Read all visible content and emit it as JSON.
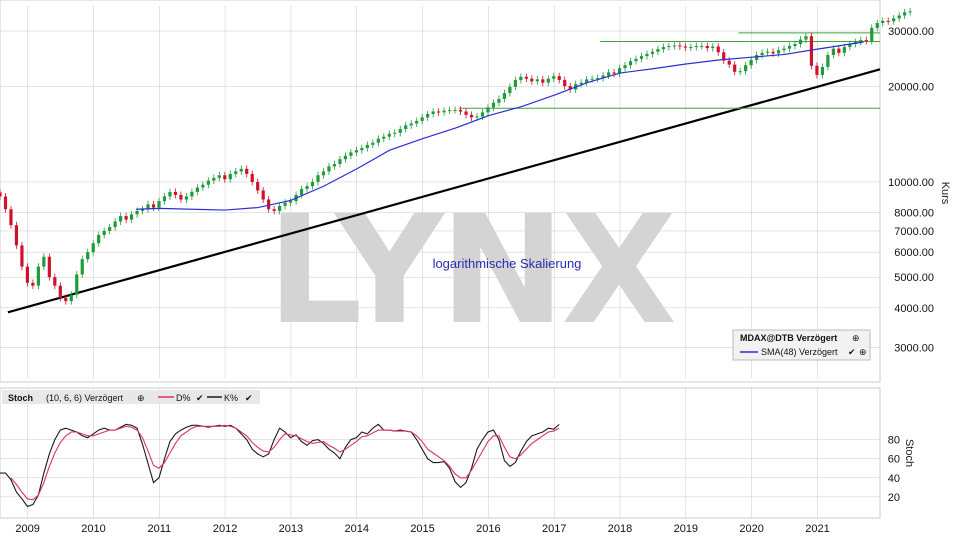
{
  "watermark": "LYNX",
  "annotation": "logarithmische Skalierung",
  "colors": {
    "up": "#1f9b3a",
    "down": "#d0112b",
    "sma": "#2d2dd6",
    "trend": "#000000",
    "support": "#3aa53a",
    "d_line": "#e0306a",
    "k_line": "#1a1a1a",
    "panel_bg": "#e6e6e6",
    "grid": "#c8c8c8"
  },
  "chart_data": [
    {
      "type": "candlestick",
      "scale": "log",
      "ylabel": "Kurs",
      "ylim": [
        2400,
        36000
      ],
      "xlim": [
        2008.58,
        2021.95
      ],
      "x_ticks": [
        "2009",
        "2010",
        "2011",
        "2012",
        "2013",
        "2014",
        "2015",
        "2016",
        "2017",
        "2018",
        "2019",
        "2020",
        "2021"
      ],
      "y_ticks": [
        "30000.00",
        "20000.00",
        "10000.00",
        "8000.00",
        "7000.00",
        "6000.00",
        "5000.00",
        "4000.00",
        "3000.00"
      ],
      "legend": [
        "MDAX@DTB Verzögert",
        "SMA(48) Verzögert"
      ],
      "series": [
        {
          "name": "MDAX@DTB Verzögert",
          "kind": "candles",
          "closes": [
            9000,
            8200,
            7300,
            6300,
            5400,
            4800,
            4700,
            5400,
            5800,
            5000,
            4700,
            4300,
            4200,
            4400,
            5100,
            5700,
            6000,
            6400,
            6800,
            7000,
            7200,
            7500,
            7800,
            7600,
            7900,
            8100,
            8200,
            8500,
            8300,
            8700,
            9000,
            9300,
            9100,
            8800,
            9000,
            9300,
            9600,
            9800,
            10100,
            10300,
            10500,
            10200,
            10600,
            10800,
            11000,
            10600,
            10000,
            9400,
            8800,
            8200,
            8100,
            8400,
            8600,
            8700,
            9100,
            9500,
            9700,
            10000,
            10500,
            10800,
            11200,
            11400,
            11800,
            12100,
            12400,
            12600,
            12800,
            13100,
            13300,
            13700,
            13900,
            14200,
            14300,
            14700,
            15100,
            15300,
            15600,
            16000,
            16400,
            16700,
            16600,
            16800,
            16900,
            16900,
            16700,
            16300,
            16000,
            16100,
            16600,
            17200,
            17800,
            18300,
            19100,
            20000,
            21000,
            21500,
            21200,
            20800,
            21100,
            20600,
            21200,
            21600,
            21000,
            20100,
            19600,
            20400,
            20600,
            21100,
            21200,
            21300,
            21700,
            22200,
            22000,
            22900,
            23400,
            24100,
            24500,
            25000,
            25400,
            25800,
            26300,
            26700,
            26900,
            27000,
            26800,
            26600,
            26700,
            26900,
            26900,
            26500,
            26800,
            25700,
            24200,
            23500,
            22300,
            22400,
            23400,
            24300,
            25200,
            25600,
            25800,
            25500,
            26100,
            26400,
            26900,
            27300,
            28200,
            28900,
            23300,
            21800,
            23100,
            25200,
            26400,
            25600,
            26700,
            27300,
            27700,
            28100,
            27900,
            30700,
            31800,
            32300,
            32200,
            32900,
            33600,
            34400,
            34600
          ],
          "x_start": 2008.58,
          "x_step": 0.0833
        },
        {
          "name": "SMA(48) Verzögert",
          "kind": "line",
          "x": [
            2010.65,
            2011.0,
            2011.5,
            2012.0,
            2012.5,
            2013.0,
            2013.5,
            2014.0,
            2014.5,
            2015.0,
            2015.5,
            2016.0,
            2016.5,
            2017.0,
            2017.5,
            2018.0,
            2018.5,
            2019.0,
            2019.5,
            2020.0,
            2020.5,
            2021.0,
            2021.7
          ],
          "y": [
            8200,
            8250,
            8200,
            8150,
            8300,
            8750,
            9700,
            11000,
            12600,
            13700,
            14800,
            16200,
            17300,
            18800,
            20600,
            22100,
            22800,
            23600,
            24300,
            24800,
            25300,
            26300,
            27700
          ]
        }
      ],
      "lines": [
        {
          "name": "trend",
          "x": [
            2008.7,
            2021.95
          ],
          "y": [
            3870,
            22700
          ]
        },
        {
          "name": "support-low",
          "x": [
            2015.55,
            2021.95
          ],
          "y": [
            17100,
            17100
          ]
        },
        {
          "name": "support-mid",
          "x": [
            2017.7,
            2021.95
          ],
          "y": [
            27800,
            27800
          ]
        },
        {
          "name": "support-high",
          "x": [
            2019.8,
            2021.95
          ],
          "y": [
            29600,
            29600
          ]
        }
      ]
    },
    {
      "type": "line",
      "ylabel": "Stoch",
      "ylim": [
        0,
        100
      ],
      "y_ticks": [
        "80",
        "60",
        "40",
        "20"
      ],
      "legend": [
        "Stoch",
        "(10, 6, 6) Verzögert",
        "D%",
        "K%"
      ],
      "x_start": 2008.58,
      "x_step": 0.0833,
      "series": [
        {
          "name": "K%",
          "values": [
            45,
            45,
            38,
            25,
            18,
            10,
            12,
            22,
            45,
            65,
            80,
            90,
            92,
            90,
            88,
            84,
            82,
            86,
            90,
            92,
            90,
            90,
            93,
            96,
            95,
            92,
            75,
            55,
            35,
            40,
            60,
            78,
            86,
            90,
            93,
            95,
            95,
            94,
            93,
            94,
            95,
            94,
            95,
            92,
            86,
            80,
            70,
            65,
            62,
            65,
            80,
            92,
            88,
            82,
            85,
            78,
            74,
            79,
            80,
            76,
            70,
            66,
            60,
            72,
            80,
            82,
            88,
            86,
            92,
            96,
            90,
            90,
            89,
            90,
            89,
            88,
            80,
            70,
            60,
            56,
            56,
            57,
            50,
            36,
            30,
            35,
            50,
            70,
            80,
            88,
            90,
            80,
            58,
            52,
            56,
            68,
            78,
            84,
            86,
            88,
            92,
            91,
            96
          ]
        },
        {
          "name": "D%",
          "values": [
            null,
            null,
            40,
            33,
            25,
            18,
            17,
            22,
            35,
            52,
            66,
            77,
            84,
            88,
            88,
            86,
            84,
            84,
            86,
            88,
            90,
            90,
            92,
            94,
            93,
            90,
            82,
            68,
            53,
            50,
            56,
            66,
            76,
            84,
            88,
            92,
            94,
            94,
            94,
            94,
            94,
            95,
            94,
            92,
            88,
            84,
            77,
            72,
            68,
            67,
            72,
            80,
            86,
            85,
            84,
            81,
            78,
            76,
            77,
            78,
            74,
            71,
            67,
            70,
            74,
            78,
            83,
            84,
            87,
            90,
            90,
            90,
            89,
            89,
            89,
            88,
            84,
            78,
            70,
            66,
            62,
            58,
            52,
            44,
            40,
            40,
            48,
            58,
            68,
            78,
            84,
            84,
            72,
            62,
            60,
            64,
            70,
            76,
            80,
            84,
            88,
            89,
            92
          ]
        }
      ]
    }
  ]
}
